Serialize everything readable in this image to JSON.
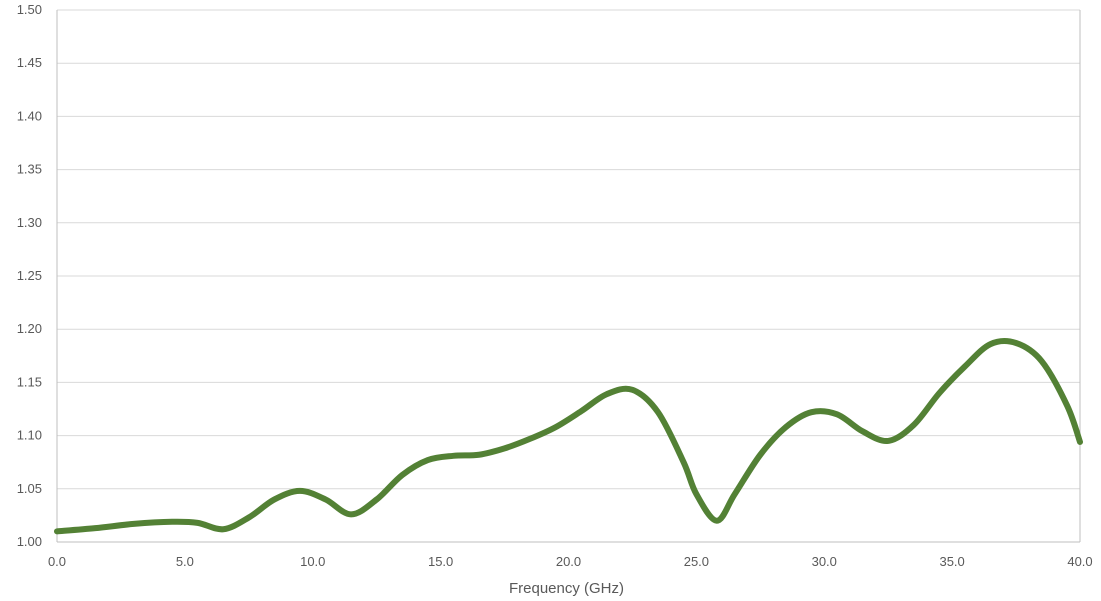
{
  "chart_data": {
    "type": "line",
    "title": "",
    "xlabel": "Frequency (GHz)",
    "ylabel": "",
    "xlim": [
      0,
      40
    ],
    "ylim": [
      1.0,
      1.5
    ],
    "x_ticks": [
      "0.0",
      "5.0",
      "10.0",
      "15.0",
      "20.0",
      "25.0",
      "30.0",
      "35.0",
      "40.0"
    ],
    "y_ticks": [
      "1.00",
      "1.05",
      "1.10",
      "1.15",
      "1.20",
      "1.25",
      "1.30",
      "1.35",
      "1.40",
      "1.45",
      "1.50"
    ],
    "grid": "horizontal",
    "legend": "none",
    "series": [
      {
        "color": "#538135",
        "x": [
          0,
          1.5,
          3,
          4.5,
          5.5,
          6.5,
          7.5,
          8.5,
          9.5,
          10.5,
          11.5,
          12.5,
          13.5,
          14.5,
          15.5,
          16.5,
          17.5,
          18.5,
          19.5,
          20.5,
          21.5,
          22.5,
          23.5,
          24.5,
          25.0,
          25.8,
          26.5,
          27.5,
          28.5,
          29.5,
          30.5,
          31.5,
          32.5,
          33.5,
          34.5,
          35.5,
          36.5,
          37.5,
          38.5,
          39.5,
          40
        ],
        "y": [
          1.01,
          1.013,
          1.017,
          1.019,
          1.018,
          1.012,
          1.023,
          1.04,
          1.048,
          1.04,
          1.026,
          1.04,
          1.063,
          1.077,
          1.081,
          1.082,
          1.088,
          1.097,
          1.108,
          1.123,
          1.139,
          1.143,
          1.122,
          1.075,
          1.045,
          1.02,
          1.045,
          1.082,
          1.108,
          1.122,
          1.12,
          1.104,
          1.095,
          1.11,
          1.14,
          1.165,
          1.186,
          1.187,
          1.17,
          1.128,
          1.094
        ]
      }
    ]
  }
}
